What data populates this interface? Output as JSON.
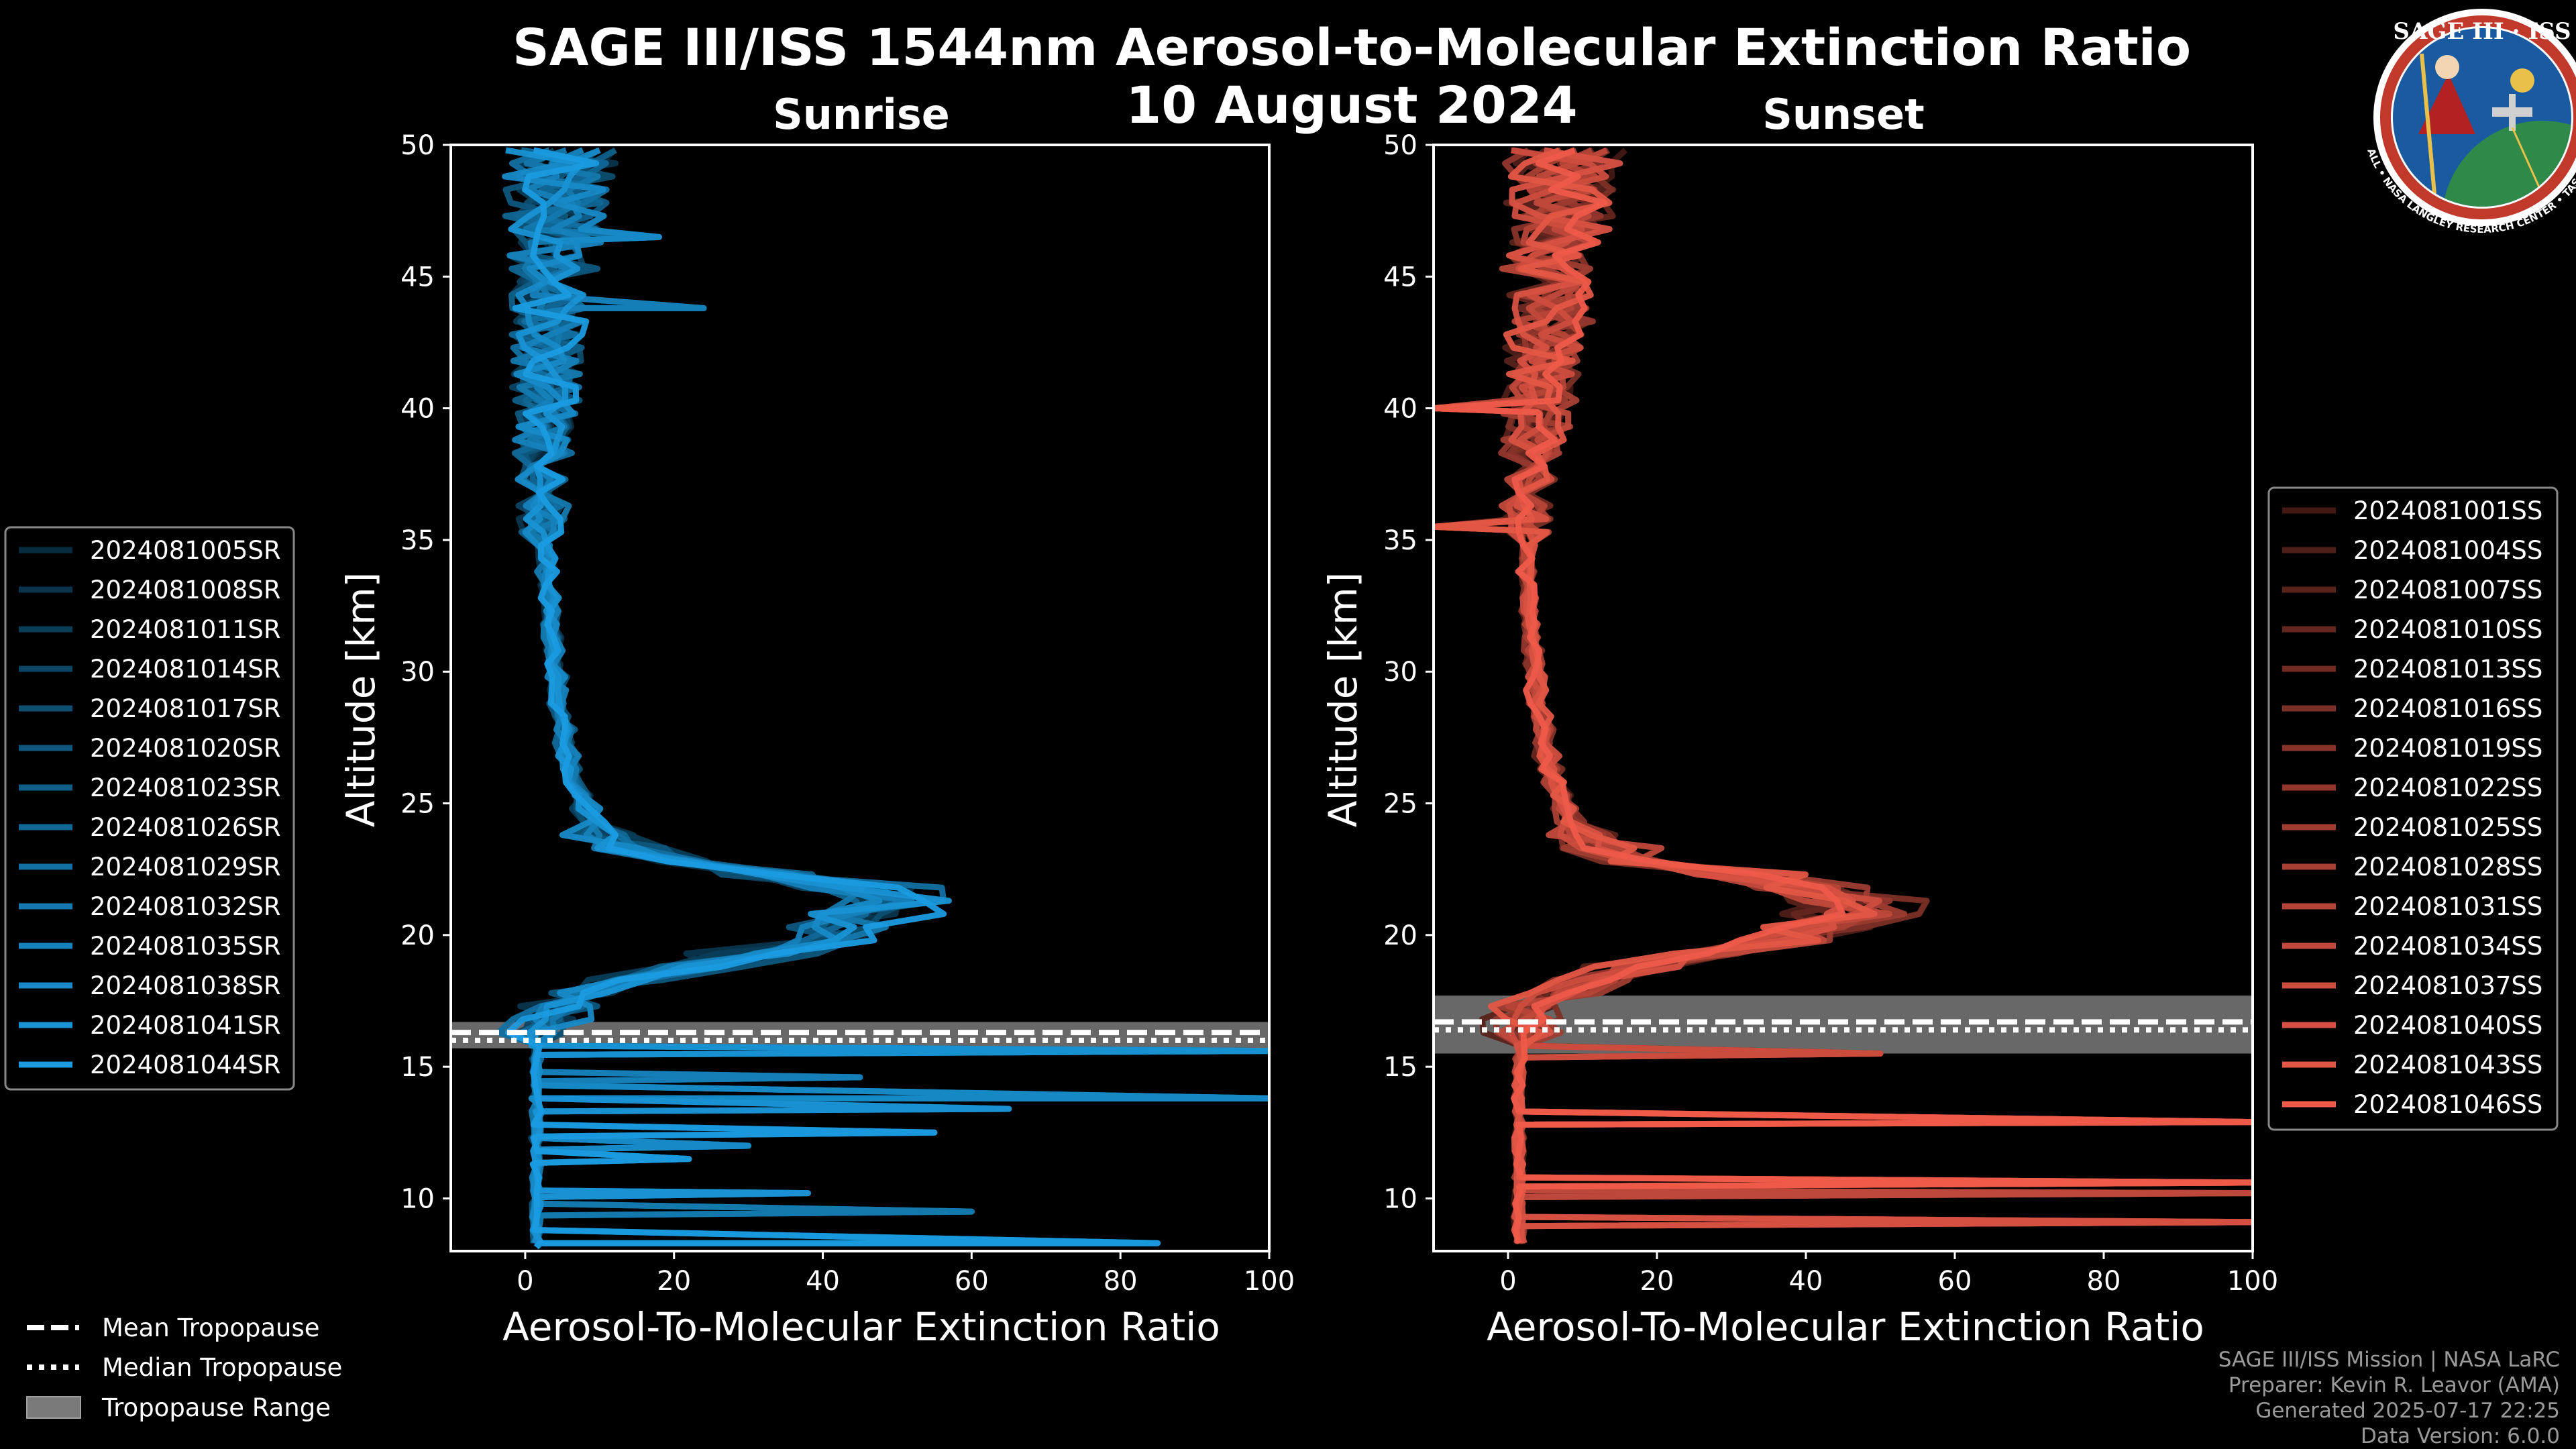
{
  "chart_data": {
    "type": "line",
    "title": "SAGE III/ISS 1544nm Aerosol-to-Molecular Extinction Ratio",
    "subtitle": "10 August 2024",
    "panels": [
      {
        "id": "sunrise",
        "title": "Sunrise",
        "xlabel": "Aerosol-To-Molecular Extinction Ratio",
        "ylabel": "Altitude [km]",
        "xlim": [
          -10,
          100
        ],
        "ylim": [
          8,
          50
        ],
        "xticks": [
          0,
          20,
          40,
          60,
          80,
          100
        ],
        "yticks": [
          10,
          15,
          20,
          25,
          30,
          35,
          40,
          45,
          50
        ],
        "base_color": "#1a9be0",
        "tropopause": {
          "mean_km": 16.3,
          "median_km": 16.0,
          "min_km": 15.7,
          "max_km": 16.7
        },
        "series_names": [
          "2024081005SR",
          "2024081008SR",
          "2024081011SR",
          "2024081014SR",
          "2024081017SR",
          "2024081020SR",
          "2024081023SR",
          "2024081026SR",
          "2024081029SR",
          "2024081032SR",
          "2024081035SR",
          "2024081038SR",
          "2024081041SR",
          "2024081044SR"
        ],
        "mean_profile": [
          [
            9,
            1.5
          ],
          [
            10,
            1.5
          ],
          [
            11,
            1.5
          ],
          [
            12,
            1.5
          ],
          [
            13,
            1.5
          ],
          [
            14,
            1.5
          ],
          [
            15,
            1.5
          ],
          [
            16,
            1.5
          ],
          [
            17,
            3
          ],
          [
            17.5,
            5
          ],
          [
            18,
            10
          ],
          [
            18.5,
            17
          ],
          [
            19,
            25
          ],
          [
            19.5,
            33
          ],
          [
            20,
            40
          ],
          [
            20.5,
            46
          ],
          [
            21,
            49
          ],
          [
            21.5,
            50
          ],
          [
            22,
            42
          ],
          [
            22.5,
            28
          ],
          [
            23,
            15
          ],
          [
            23.5,
            11
          ],
          [
            24,
            9.5
          ],
          [
            25,
            8
          ],
          [
            26,
            6.5
          ],
          [
            27,
            5.5
          ],
          [
            28,
            5
          ],
          [
            29,
            4.5
          ],
          [
            30,
            4
          ],
          [
            32,
            3.5
          ],
          [
            34,
            3
          ],
          [
            36,
            2.5
          ],
          [
            38,
            2
          ],
          [
            40,
            3
          ],
          [
            42,
            3
          ],
          [
            44,
            3
          ],
          [
            46,
            4
          ],
          [
            48,
            4.5
          ],
          [
            50,
            5
          ]
        ],
        "spikes": [
          [
            10.2,
            38
          ],
          [
            11.5,
            22
          ],
          [
            12.5,
            55
          ],
          [
            13.4,
            65
          ],
          [
            13.8,
            100
          ],
          [
            14.6,
            45
          ],
          [
            9.5,
            60
          ],
          [
            8.3,
            85
          ],
          [
            15.6,
            100
          ],
          [
            12.0,
            30
          ],
          [
            43.8,
            24
          ],
          [
            46.5,
            18
          ]
        ],
        "legend_position": "left"
      },
      {
        "id": "sunset",
        "title": "Sunset",
        "xlabel": "Aerosol-To-Molecular Extinction Ratio",
        "ylabel": "Altitude [km]",
        "xlim": [
          -10,
          100
        ],
        "ylim": [
          8,
          50
        ],
        "xticks": [
          0,
          20,
          40,
          60,
          80,
          100
        ],
        "yticks": [
          10,
          15,
          20,
          25,
          30,
          35,
          40,
          45,
          50
        ],
        "base_color": "#ee5a49",
        "tropopause": {
          "mean_km": 16.7,
          "median_km": 16.4,
          "min_km": 15.5,
          "max_km": 17.7
        },
        "series_names": [
          "2024081001SS",
          "2024081004SS",
          "2024081007SS",
          "2024081010SS",
          "2024081013SS",
          "2024081016SS",
          "2024081019SS",
          "2024081022SS",
          "2024081025SS",
          "2024081028SS",
          "2024081031SS",
          "2024081034SS",
          "2024081037SS",
          "2024081040SS",
          "2024081043SS",
          "2024081046SS"
        ],
        "mean_profile": [
          [
            9,
            1.5
          ],
          [
            10,
            1.5
          ],
          [
            11,
            1.5
          ],
          [
            12,
            1.5
          ],
          [
            13,
            1.5
          ],
          [
            14,
            1.5
          ],
          [
            15,
            1.5
          ],
          [
            16,
            2
          ],
          [
            17,
            3
          ],
          [
            17.5,
            5
          ],
          [
            18,
            8
          ],
          [
            18.5,
            13
          ],
          [
            19,
            20
          ],
          [
            19.5,
            28
          ],
          [
            20,
            36
          ],
          [
            20.5,
            43
          ],
          [
            21,
            46
          ],
          [
            21.5,
            45
          ],
          [
            22,
            38
          ],
          [
            22.5,
            26
          ],
          [
            23,
            15
          ],
          [
            23.5,
            11
          ],
          [
            24,
            9
          ],
          [
            25,
            7.5
          ],
          [
            26,
            6
          ],
          [
            27,
            5
          ],
          [
            28,
            4.5
          ],
          [
            29,
            4
          ],
          [
            30,
            3.5
          ],
          [
            32,
            3
          ],
          [
            34,
            2.5
          ],
          [
            36,
            2.5
          ],
          [
            38,
            3
          ],
          [
            40,
            4
          ],
          [
            42,
            5
          ],
          [
            44,
            6
          ],
          [
            46,
            6
          ],
          [
            48,
            7
          ],
          [
            50,
            8
          ]
        ],
        "spikes": [
          [
            12.9,
            100
          ],
          [
            10.6,
            100
          ],
          [
            9.1,
            100
          ],
          [
            15.5,
            50
          ],
          [
            10.2,
            100
          ],
          [
            40.0,
            -10
          ],
          [
            35.5,
            -10
          ]
        ],
        "legend_position": "right"
      }
    ],
    "shared_legend": [
      {
        "style": "dashed",
        "label": "Mean Tropopause"
      },
      {
        "style": "dotted",
        "label": "Median Tropopause"
      },
      {
        "style": "band",
        "label": "Tropopause Range"
      }
    ]
  },
  "credits": {
    "line1": "SAGE III/ISS Mission | NASA LaRC",
    "line2": "Preparer: Kevin R. Leavor (AMA)",
    "line3": "Generated 2025-07-17 22:25",
    "line4": "Data Version: 6.0.0"
  },
  "logo": {
    "top_text": "SAGE III · ISS",
    "ring_text": "BALL • NASA LANGLEY RESEARCH CENTER • TAS-I • ESA",
    "colors": {
      "ring": "#c0392b",
      "field": "#1a5aa0",
      "land": "#2f8a4a",
      "gold": "#e8c04a"
    }
  }
}
